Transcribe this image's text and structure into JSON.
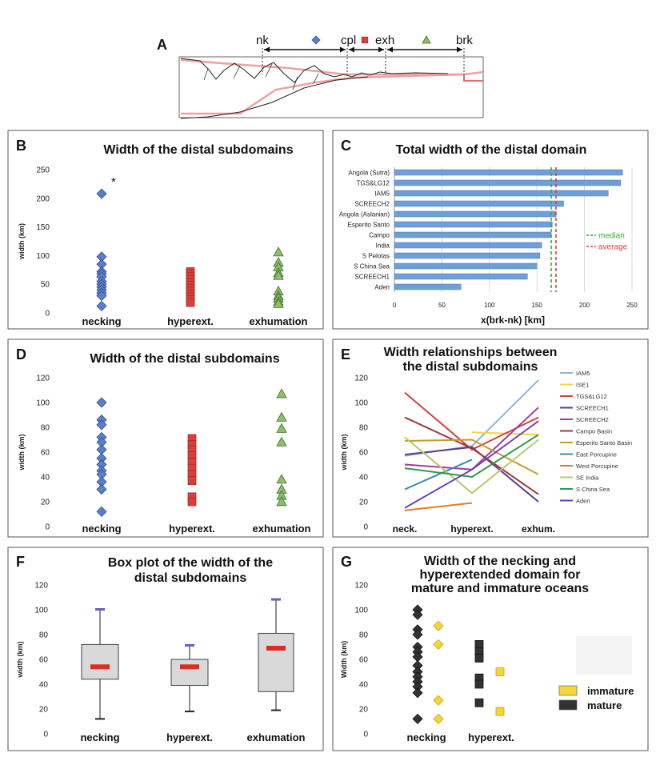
{
  "panel_a": {
    "letter": "A",
    "labels": [
      "nk",
      "cpl",
      "exh",
      "brk"
    ]
  },
  "chart_data": [
    {
      "id": "B",
      "type": "scatter",
      "letter": "B",
      "title": "Width of the distal subdomains",
      "ylabel": "width (km)",
      "ylim": [
        0,
        250
      ],
      "yticks": [
        0,
        50,
        100,
        150,
        200,
        250
      ],
      "categories": [
        "necking",
        "hyperext.",
        "exhumation"
      ],
      "annotation": "*",
      "series": [
        {
          "name": "necking",
          "marker": "diamond",
          "color": "#5b7ec8",
          "values": [
            208,
            98,
            85,
            72,
            68,
            63,
            55,
            50,
            45,
            40,
            35,
            30,
            12
          ]
        },
        {
          "name": "hyperext.",
          "marker": "square",
          "color": "#d8403b",
          "values": [
            72,
            68,
            63,
            58,
            53,
            48,
            43,
            38,
            33,
            28,
            23,
            18
          ]
        },
        {
          "name": "exhumation",
          "marker": "triangle",
          "color": "#8dbf6a",
          "values": [
            106,
            88,
            80,
            70,
            65,
            38,
            30,
            26,
            20,
            16
          ]
        }
      ]
    },
    {
      "id": "C",
      "type": "bar",
      "letter": "C",
      "title": "Total width of the distal domain",
      "xlabel": "x(brk-nk) [km]",
      "xlim": [
        0,
        250
      ],
      "xticks": [
        0,
        50,
        100,
        150,
        200,
        250
      ],
      "categories": [
        "Angola (Sutra)",
        "TGS&LG12",
        "IAM5",
        "SCREECH2",
        "Angola (Aslanian)",
        "Esperito Santo",
        "Campo",
        "India",
        "S Pelotas",
        "S China Sea",
        "SCREECH1",
        "Aden"
      ],
      "values": [
        240,
        238,
        225,
        178,
        170,
        166,
        165,
        155,
        153,
        150,
        140,
        70
      ],
      "median": 165,
      "average": 170,
      "legend": [
        {
          "label": "median",
          "color": "#3aa83a"
        },
        {
          "label": "average",
          "color": "#d8403b"
        }
      ]
    },
    {
      "id": "D",
      "type": "scatter",
      "letter": "D",
      "title": "Width of the distal subdomains",
      "ylabel": "width (km)",
      "ylim": [
        0,
        120
      ],
      "yticks": [
        0,
        20,
        40,
        60,
        80,
        100,
        120
      ],
      "categories": [
        "necking",
        "hyperext.",
        "exhumation"
      ],
      "series": [
        {
          "name": "necking",
          "marker": "diamond",
          "color": "#5b7ec8",
          "values": [
            100,
            86,
            82,
            72,
            68,
            62,
            55,
            50,
            45,
            42,
            36,
            30,
            12
          ]
        },
        {
          "name": "hyperext.",
          "marker": "square",
          "color": "#d8403b",
          "values": [
            71,
            66,
            62,
            57,
            52,
            47,
            42,
            37,
            24,
            20
          ]
        },
        {
          "name": "exhumation",
          "marker": "triangle",
          "color": "#8dbf6a",
          "values": [
            107,
            88,
            79,
            68,
            38,
            30,
            25,
            20
          ]
        }
      ]
    },
    {
      "id": "E",
      "type": "line",
      "letter": "E",
      "title_lines": [
        "Width relationships between",
        "the distal subdomains"
      ],
      "ylabel": "width (km)",
      "ylim": [
        0,
        120
      ],
      "yticks": [
        0,
        20,
        40,
        60,
        80,
        100,
        120
      ],
      "categories": [
        "neck.",
        "hyperext.",
        "exhum."
      ],
      "series": [
        {
          "name": "IAM5",
          "color": "#8db4e2",
          "values": [
            57,
            65,
            118
          ]
        },
        {
          "name": "ISE1",
          "color": "#f5d53b",
          "values": [
            null,
            76,
            74
          ]
        },
        {
          "name": "TGS&LG12",
          "color": "#d8403b",
          "values": [
            108,
            62,
            88
          ]
        },
        {
          "name": "SCREECH1",
          "color": "#5a3e8e",
          "values": [
            58,
            64,
            20
          ]
        },
        {
          "name": "SCREECH2",
          "color": "#a23aa0",
          "values": [
            50,
            46,
            96
          ]
        },
        {
          "name": "Campo Basin",
          "color": "#9e3a3a",
          "values": [
            88,
            63,
            26
          ]
        },
        {
          "name": "Esperito Santo Basin",
          "color": "#c79b2c",
          "values": [
            69,
            70,
            42
          ]
        },
        {
          "name": "East Porcupine",
          "color": "#3f8faa",
          "values": [
            30,
            54,
            null
          ]
        },
        {
          "name": "West Porcupine",
          "color": "#e07b2e",
          "values": [
            13,
            19,
            null
          ]
        },
        {
          "name": "SE India",
          "color": "#b7c96a",
          "values": [
            72,
            27,
            70
          ]
        },
        {
          "name": "S China Sea",
          "color": "#2f9a4a",
          "values": [
            47,
            40,
            74
          ]
        },
        {
          "name": "Aden",
          "color": "#6a3ec2",
          "values": [
            15,
            46,
            85
          ]
        }
      ]
    },
    {
      "id": "F",
      "type": "box",
      "letter": "F",
      "title_lines": [
        "Box plot of the width of the",
        "distal subdomains"
      ],
      "ylabel": "width (km)",
      "ylim": [
        0,
        120
      ],
      "yticks": [
        0,
        20,
        40,
        60,
        80,
        100,
        120
      ],
      "categories": [
        "necking",
        "hyperext.",
        "exhumation"
      ],
      "boxes": [
        {
          "name": "necking",
          "min": 12,
          "q1": 44,
          "median": 54,
          "q3": 72,
          "max": 100
        },
        {
          "name": "hyperext.",
          "min": 18,
          "q1": 39,
          "median": 54,
          "q3": 60,
          "max": 71
        },
        {
          "name": "exhumation",
          "min": 19,
          "q1": 34,
          "median": 69,
          "q3": 81,
          "max": 108
        }
      ]
    },
    {
      "id": "G",
      "type": "scatter",
      "letter": "G",
      "title_lines": [
        "Width of the necking and",
        "hyperextended domain for",
        "mature and immature oceans"
      ],
      "ylabel": "Width (km)",
      "ylim": [
        0,
        120
      ],
      "yticks": [
        0,
        20,
        40,
        60,
        80,
        100,
        120
      ],
      "categories": [
        "necking",
        "hyperext."
      ],
      "legend": [
        {
          "label": "immature",
          "color": "#f5d53b"
        },
        {
          "label": "mature",
          "color": "#333333"
        }
      ],
      "series": [
        {
          "name": "necking mature",
          "category": 0,
          "group": "mature",
          "values": [
            100,
            96,
            84,
            80,
            70,
            66,
            62,
            55,
            50,
            46,
            42,
            38,
            33,
            12
          ]
        },
        {
          "name": "necking immature",
          "category": 0,
          "group": "immature",
          "values": [
            87,
            72,
            27,
            12
          ]
        },
        {
          "name": "hyperext. mature",
          "category": 1,
          "group": "mature",
          "values": [
            72,
            66,
            61,
            45,
            40,
            25
          ]
        },
        {
          "name": "hyperext. immature",
          "category": 1,
          "group": "immature",
          "values": [
            50,
            18
          ]
        }
      ]
    }
  ]
}
